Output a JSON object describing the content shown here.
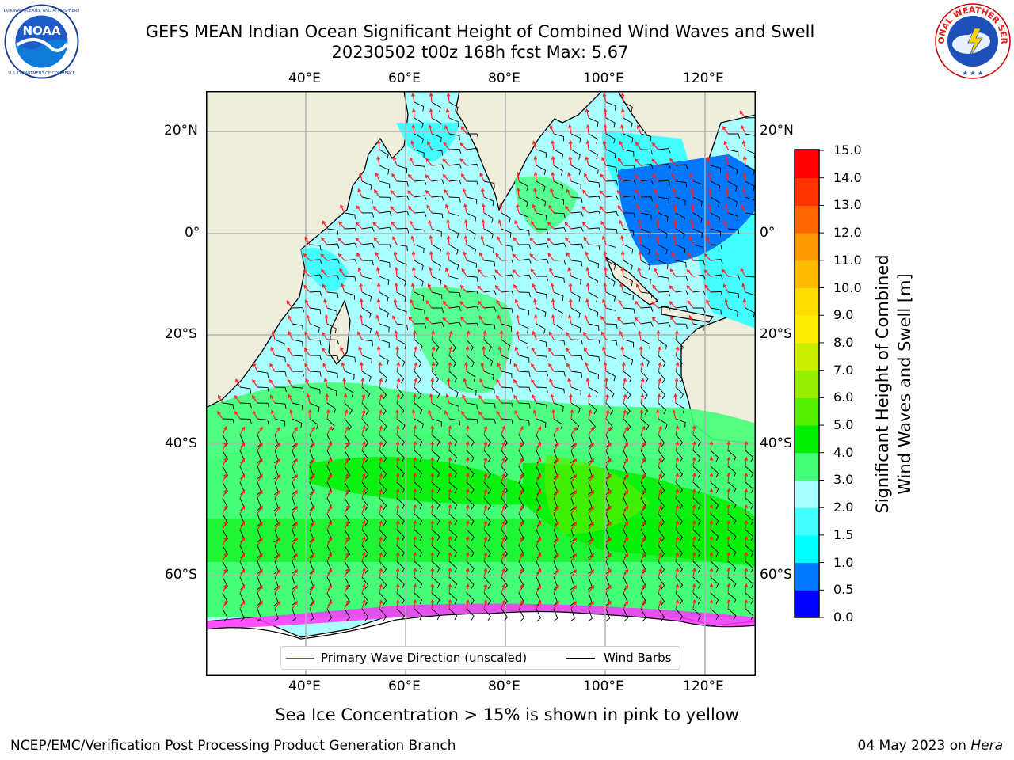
{
  "header": {
    "title_line1": "GEFS MEAN Indian Ocean Significant Height of Combined Wind Waves and Swell",
    "title_line2": "20230502 t00z 168h fcst   Max: 5.67"
  },
  "map": {
    "region": "Indian Ocean",
    "lon_range": [
      20,
      130
    ],
    "lat_range": [
      -75,
      27
    ],
    "lon_ticks": [
      "40°E",
      "60°E",
      "80°E",
      "100°E",
      "120°E"
    ],
    "lat_ticks": [
      "20°N",
      "0°",
      "20°S",
      "40°S",
      "60°S"
    ],
    "colors": {
      "land": "#efeedd",
      "grid": "#b0b0b0",
      "wave_arrow": "#ff2020",
      "wind_barb": "#000000",
      "sea_ice": "#ff33ff"
    }
  },
  "colorbar": {
    "title": "Significant Height of Combined\nWind Waves and Swell [m]",
    "tick_labels": [
      "0.0",
      "0.5",
      "1.0",
      "1.5",
      "2.0",
      "3.0",
      "4.0",
      "5.0",
      "6.0",
      "7.0",
      "8.0",
      "9.0",
      "10.0",
      "11.0",
      "12.0",
      "13.0",
      "14.0",
      "15.0"
    ],
    "colors": [
      "#0000ff",
      "#0077ff",
      "#00ffff",
      "#44ffff",
      "#aaffff",
      "#44ff77",
      "#00ee00",
      "#55ee00",
      "#99ee00",
      "#ccee00",
      "#ffee00",
      "#ffdd00",
      "#ffbb00",
      "#ff9900",
      "#ff6600",
      "#ff3300",
      "#ff0000"
    ]
  },
  "legend": {
    "wave_label": "Primary Wave Direction (unscaled)",
    "wind_label": "Wind Barbs"
  },
  "caption": "Sea Ice Concentration > 15% is shown in pink to yellow",
  "footer": {
    "left": "NCEP/EMC/Verification Post Processing Product Generation Branch",
    "date": "04 May 2023 on ",
    "machine": "Hera"
  },
  "logos": {
    "noaa_text": "NOAA",
    "nws_text": "NATIONAL WEATHER SERVICE"
  }
}
